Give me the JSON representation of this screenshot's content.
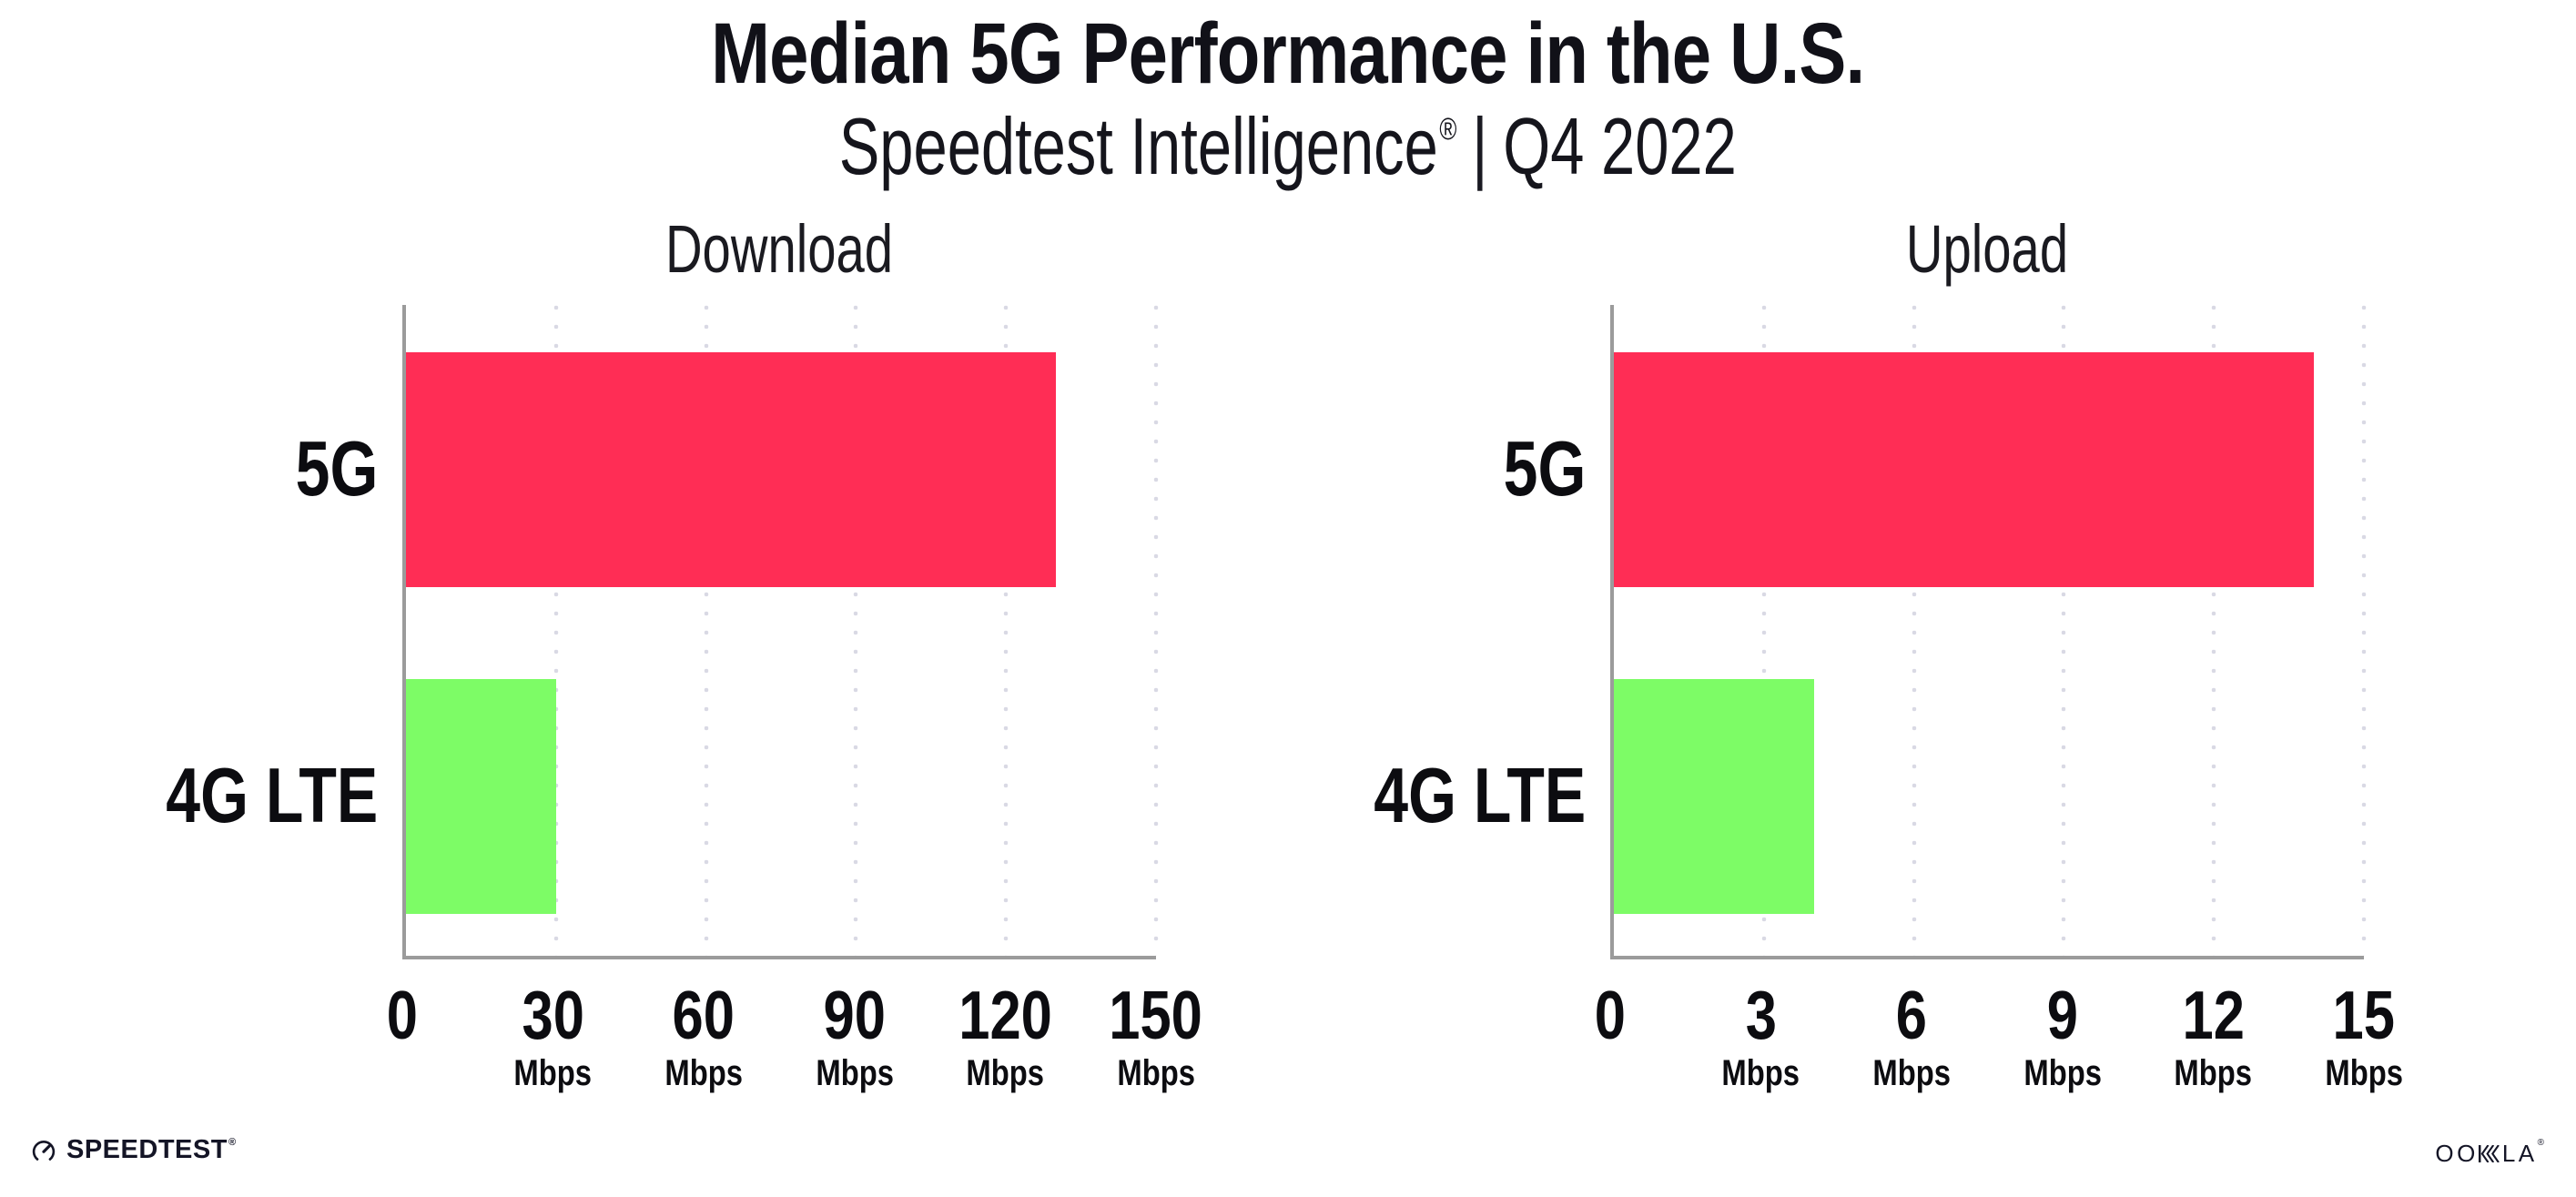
{
  "header": {
    "title": "Median 5G Performance in the U.S.",
    "subtitle_brand": "Speedtest Intelligence",
    "subtitle_reg": "®",
    "subtitle_divider": "|",
    "subtitle_period": "Q4 2022"
  },
  "chart_data": {
    "type": "bar",
    "orientation": "horizontal",
    "categories": [
      "5G",
      "4G LTE"
    ],
    "bar_colors": [
      "#FF2D55",
      "#7DFC66"
    ],
    "unit": "Mbps",
    "grid": "dotted vertical gridlines at each tick",
    "gridline_color": "#d9d9e4",
    "axis_color": "#9b9b9b",
    "legend_position": "none",
    "charts": [
      {
        "title": "Download",
        "xlim": [
          0,
          150
        ],
        "ticks": [
          0,
          30,
          60,
          90,
          120,
          150
        ],
        "series": [
          {
            "name": "5G",
            "value": 130
          },
          {
            "name": "4G LTE",
            "value": 30
          }
        ]
      },
      {
        "title": "Upload",
        "xlim": [
          0,
          15
        ],
        "ticks": [
          0,
          3,
          6,
          9,
          12,
          15
        ],
        "series": [
          {
            "name": "5G",
            "value": 14
          },
          {
            "name": "4G LTE",
            "value": 4
          }
        ]
      }
    ]
  },
  "footer": {
    "speedtest_label": "SPEEDTEST",
    "speedtest_mark": "®",
    "ookla_part1": "OO",
    "ookla_part2": "LA",
    "ookla_mark": "®"
  }
}
